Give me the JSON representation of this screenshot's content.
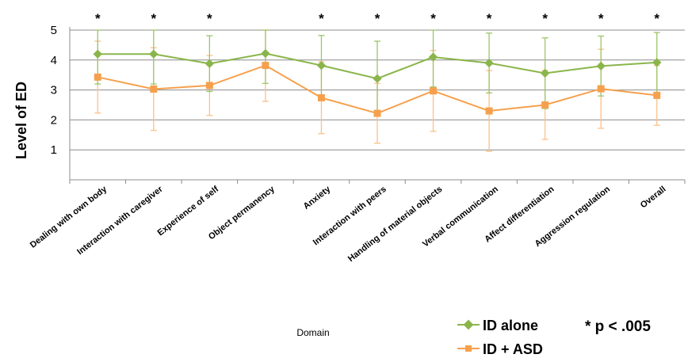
{
  "chart_data": {
    "type": "line",
    "title": "",
    "ylabel": "Level of ED",
    "xlabel": "Domain",
    "ylim": [
      0,
      5
    ],
    "yticks": [
      1,
      2,
      3,
      4,
      5
    ],
    "grid": true,
    "legend_position": "bottom-right",
    "categories": [
      "Dealing with own body",
      "Interaction with caregiver",
      "Experience of self",
      "Object permanency",
      "Anxiety",
      "Interaction with peers",
      "Handling of material objects",
      "Verbal communication",
      "Affect differentiation",
      "Aggression regulation",
      "Overall"
    ],
    "significant": [
      true,
      true,
      true,
      false,
      true,
      true,
      true,
      true,
      true,
      true,
      true
    ],
    "significance_marker": "*",
    "significance_note": "* p < .005",
    "series": [
      {
        "name": "ID alone",
        "color": "#8ab54a",
        "marker": "diamond",
        "values": [
          4.2,
          4.2,
          3.88,
          4.22,
          3.82,
          3.38,
          4.1,
          3.9,
          3.56,
          3.8,
          3.92
        ],
        "error": [
          1.0,
          1.0,
          0.93,
          1.0,
          1.0,
          1.25,
          1.0,
          1.0,
          1.18,
          1.0,
          1.0
        ]
      },
      {
        "name": "ID + ASD",
        "color": "#f6a04d",
        "marker": "square",
        "values": [
          3.43,
          3.03,
          3.15,
          3.82,
          2.74,
          2.22,
          2.97,
          2.3,
          2.5,
          3.04,
          2.82
        ],
        "error": [
          1.2,
          1.38,
          1.0,
          1.2,
          1.2,
          1.0,
          1.35,
          1.35,
          1.15,
          1.32,
          1.0
        ]
      }
    ]
  }
}
